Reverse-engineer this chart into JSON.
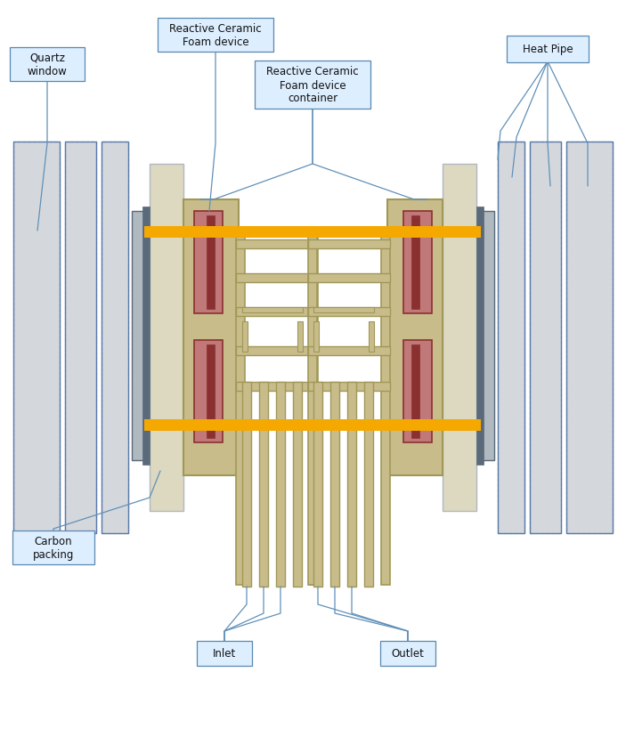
{
  "bg_color": "#ffffff",
  "colors": {
    "light_gray": "#d4d8dc",
    "mid_gray": "#b0b8c0",
    "dark_gray": "#5a6a7a",
    "blue_outline": "#5a7aaa",
    "tan": "#c8bc8a",
    "tan_dark": "#a09858",
    "orange_yellow": "#f5a800",
    "red_foam": "#8a3030",
    "pink_foam": "#c07878",
    "cream": "#ddd8c0",
    "label_box": "#ddeeff",
    "label_outline": "#5a88b0",
    "arrow_color": "#6090b8"
  },
  "labels": {
    "quartz_window": "Quartz\nwindow",
    "rcf_device": "Reactive Ceramic\nFoam device",
    "rcf_container": "Reactive Ceramic\nFoam device\ncontainer",
    "heat_pipe": "Heat Pipe",
    "carbon_packing": "Carbon\npacking",
    "inlet": "Inlet",
    "outlet": "Outlet"
  }
}
